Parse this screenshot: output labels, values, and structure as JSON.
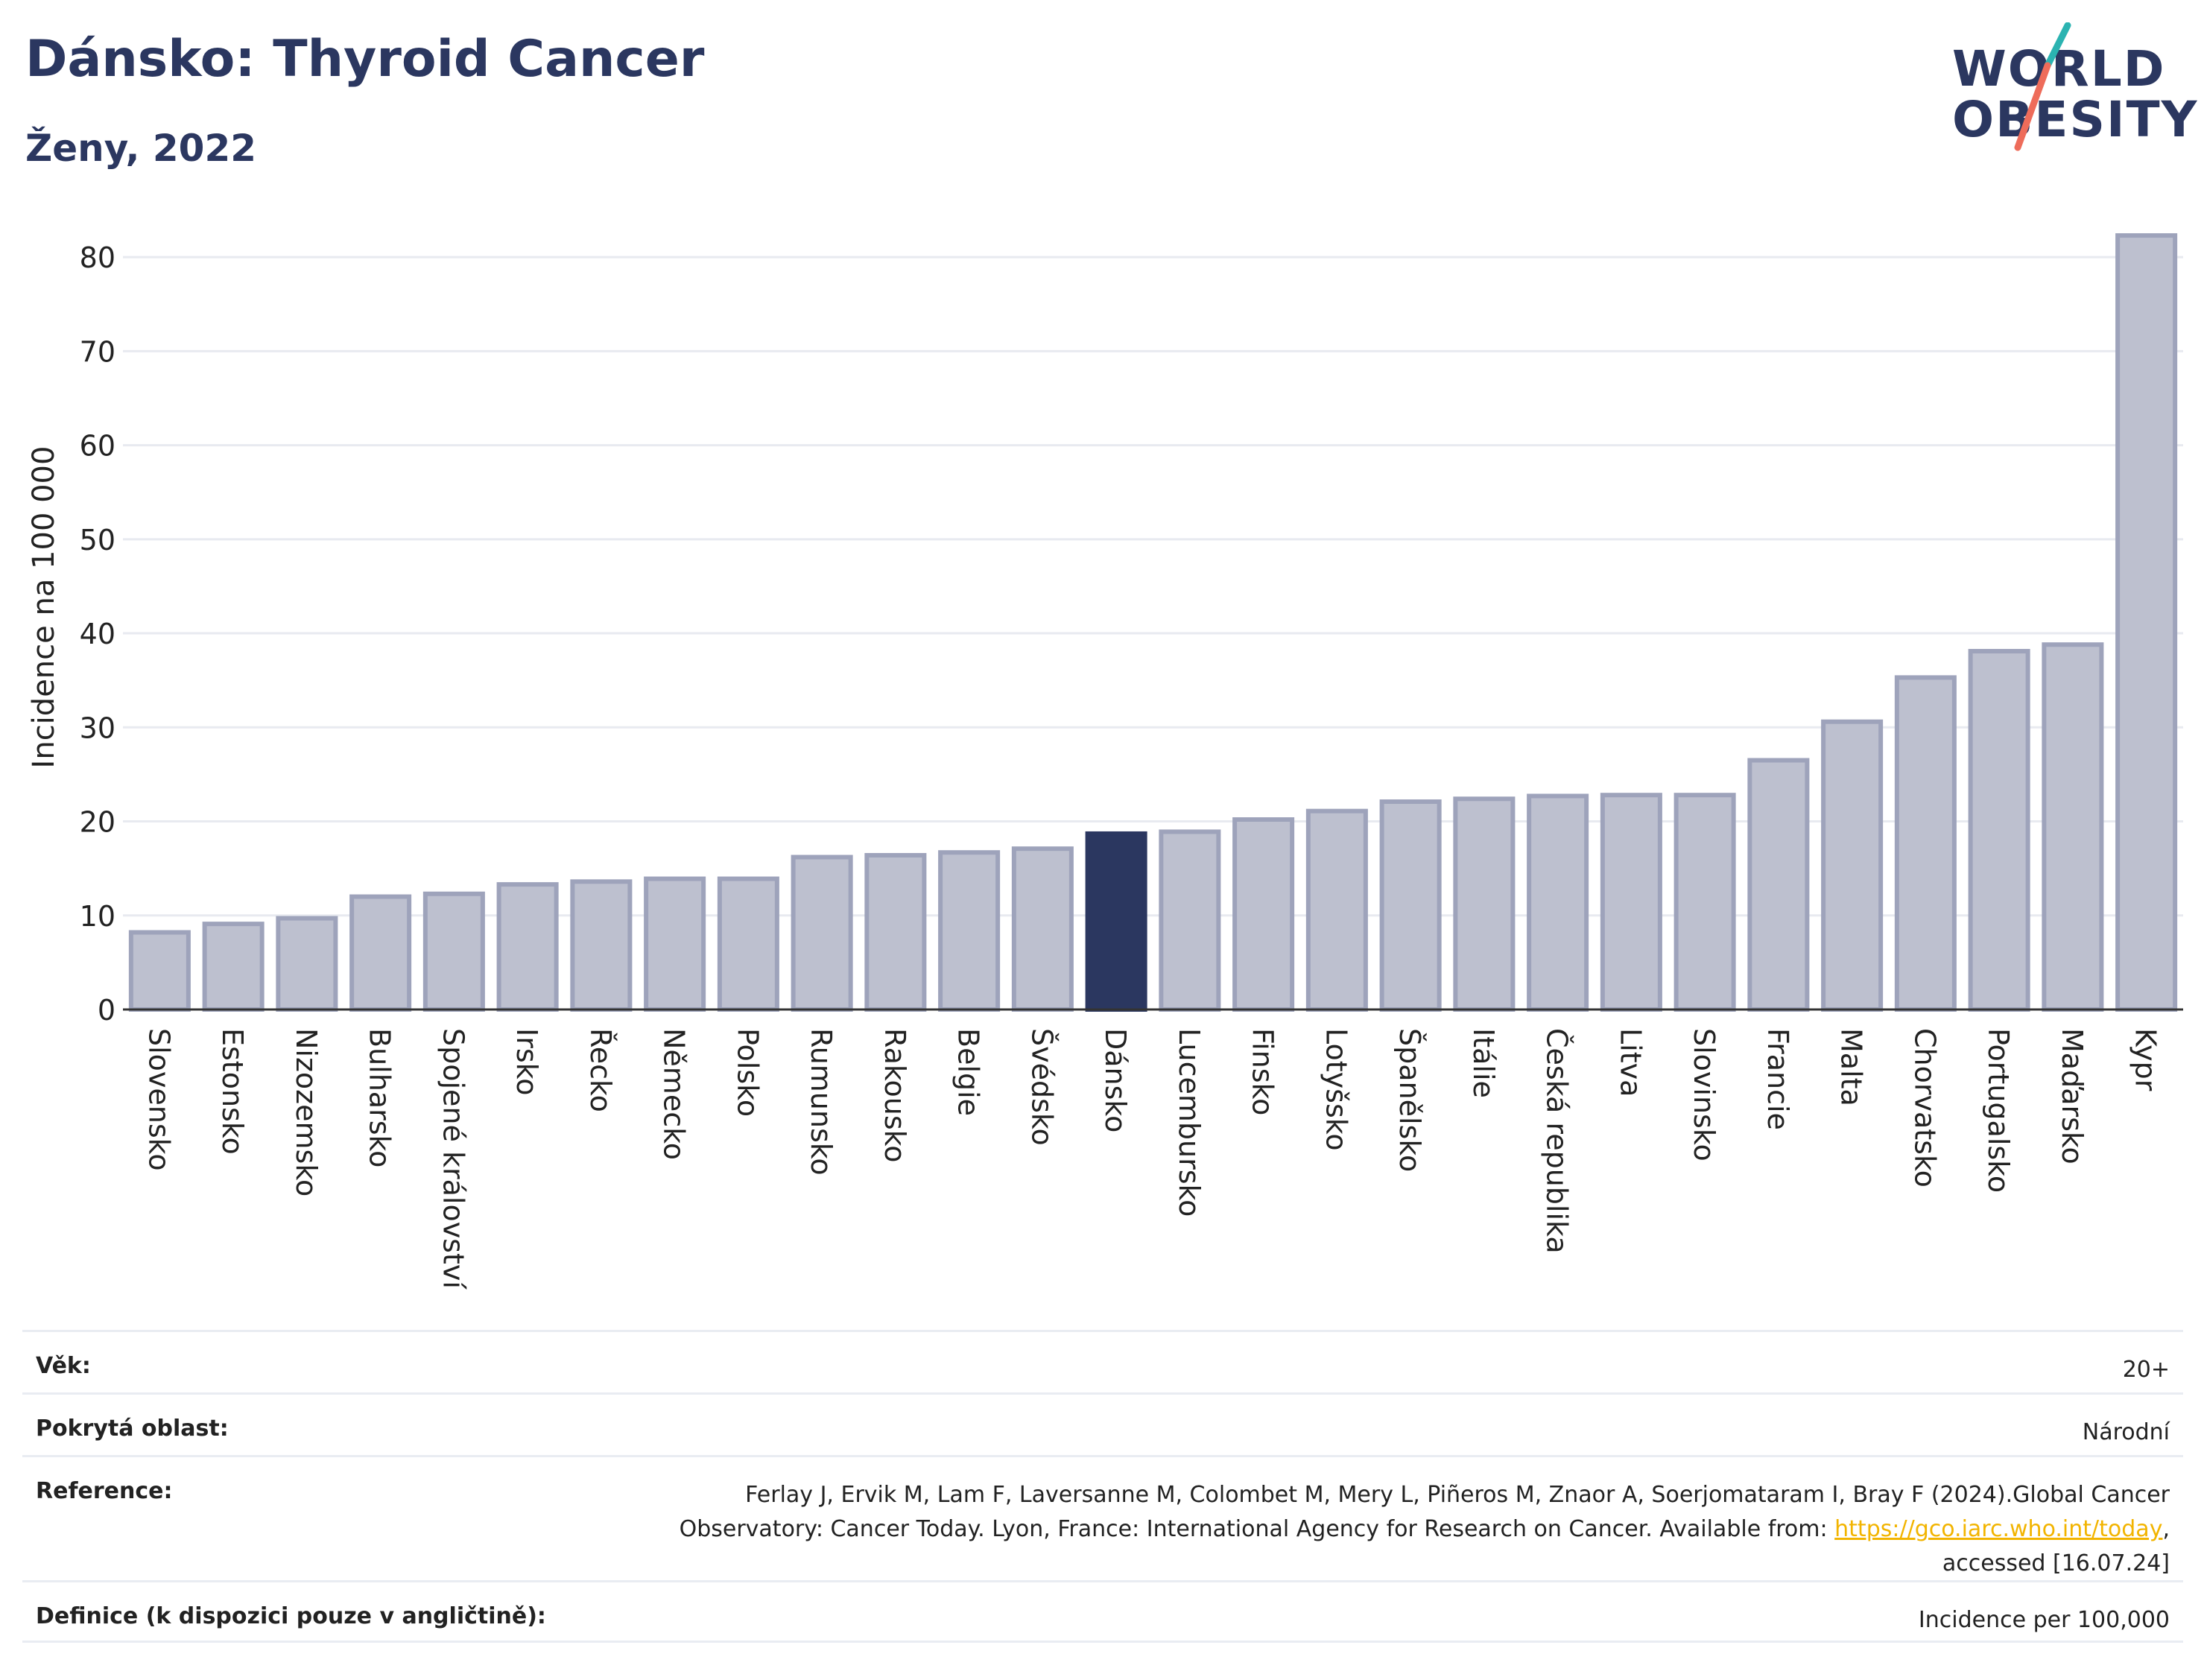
{
  "header": {
    "title": "Dánsko: Thyroid Cancer",
    "subtitle": "Ženy, 2022"
  },
  "logo": {
    "line1": "WORLD",
    "line2": "OBESITY"
  },
  "colors": {
    "highlight_bar": "#2b3760",
    "default_bar": "#bdc0cf",
    "default_bar_border": "#9ea3bb",
    "logo_teal": "#2bb3b1",
    "logo_coral": "#ee6c5a",
    "link": "#f2b400"
  },
  "chart_data": {
    "type": "bar",
    "ylabel": "Incidence na 100 000",
    "ylim": [
      0,
      85
    ],
    "yticks": [
      0,
      10,
      20,
      30,
      40,
      50,
      60,
      70,
      80
    ],
    "grid": true,
    "highlight": "Dánsko",
    "categories": [
      "Slovensko",
      "Estonsko",
      "Nizozemsko",
      "Bulharsko",
      "Spojené království",
      "Irsko",
      "Řecko",
      "Německo",
      "Polsko",
      "Rumunsko",
      "Rakousko",
      "Belgie",
      "Švédsko",
      "Dánsko",
      "Lucembursko",
      "Finsko",
      "Lotyšsko",
      "Španělsko",
      "Itálie",
      "Česká republika",
      "Litva",
      "Slovinsko",
      "Francie",
      "Malta",
      "Chorvatsko",
      "Portugalsko",
      "Maďarsko",
      "Kypr"
    ],
    "values": [
      8.2,
      9.1,
      9.7,
      12.0,
      12.3,
      13.3,
      13.6,
      13.9,
      13.9,
      16.2,
      16.4,
      16.7,
      17.1,
      18.7,
      18.9,
      20.2,
      21.1,
      22.1,
      22.4,
      22.7,
      22.8,
      22.8,
      26.5,
      30.6,
      35.3,
      38.1,
      38.8,
      82.3
    ]
  },
  "footer": {
    "age_label": "Věk:",
    "age_value": "20+",
    "area_label": "Pokrytá oblast:",
    "area_value": "Národní",
    "reference_label": "Reference:",
    "reference_line1": "Ferlay J, Ervik M, Lam F, Laversanne M, Colombet M, Mery L, Piñeros M, Znaor A, Soerjomataram I, Bray F (2024).Global Cancer",
    "reference_line2_pre": "Observatory: Cancer Today. Lyon, France: International Agency for Research on Cancer. Available from: ",
    "reference_link": "https://gco.iarc.who.int/today",
    "reference_line2_post": ",",
    "reference_line3": "accessed [16.07.24]",
    "definition_label": "Definice (k dispozici pouze v angličtině):",
    "definition_value": "Incidence per 100,000"
  }
}
